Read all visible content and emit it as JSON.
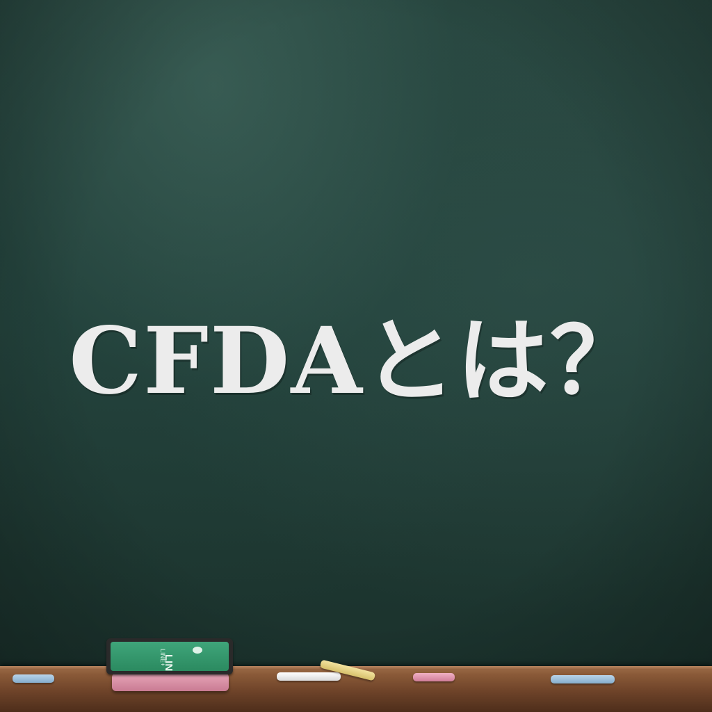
{
  "headline": "CFDAとは？",
  "eraser": {
    "brand": "LINE",
    "sub_label": "LINE+"
  },
  "colors": {
    "board": "#22403a",
    "text": "#ececec",
    "ledge": "#6e4329",
    "eraser_face": "#2b8a60",
    "eraser_base": "#d88ba2"
  },
  "chalk": [
    "blue",
    "white",
    "yellow",
    "pink",
    "blue"
  ]
}
